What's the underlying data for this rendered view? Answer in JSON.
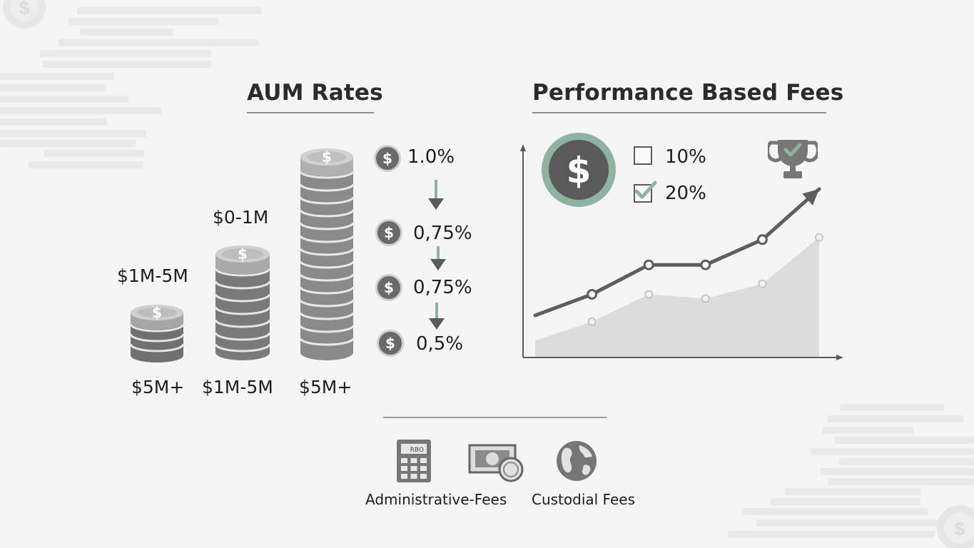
{
  "aum": {
    "title": "AUM Rates",
    "stacks": [
      {
        "top_label": "$1M-5M",
        "bottom_label": "$5M+",
        "symbol": "$"
      },
      {
        "top_label": "$0-1M",
        "bottom_label": "$1M-5M",
        "symbol": "$"
      },
      {
        "bottom_label": "$5M+",
        "symbol": "$"
      }
    ],
    "rates": [
      {
        "symbol": "$",
        "value": "1.0%"
      },
      {
        "symbol": "$",
        "value": "0,75%"
      },
      {
        "symbol": "$",
        "value": "0,75%"
      },
      {
        "symbol": "$",
        "value": "0,5%"
      }
    ],
    "arrow_icon": "arrow-down-icon"
  },
  "performance": {
    "title": "Performance Based Fees",
    "badge_symbol": "$",
    "options": [
      {
        "label": "10%",
        "checked": false
      },
      {
        "label": "20%",
        "checked": true
      }
    ],
    "trophy_icon": "trophy-icon"
  },
  "chart_data": {
    "type": "line",
    "title": "",
    "xlabel": "",
    "ylabel": "",
    "x": [
      1,
      2,
      3,
      4,
      5,
      6
    ],
    "series": [
      {
        "values": [
          2.0,
          3.0,
          4.4,
          4.4,
          5.6,
          8.0
        ],
        "style": "line",
        "color": "#5e5e5e"
      },
      {
        "values": [
          0.8,
          1.7,
          3.0,
          2.8,
          3.5,
          5.7
        ],
        "style": "area",
        "color": "#dcdcdc"
      }
    ],
    "ylim": [
      0,
      10
    ],
    "grid": false
  },
  "footer": {
    "items": [
      {
        "label": "Administrative-Fees",
        "icon": "calculator-icon",
        "display": "RBO"
      },
      {
        "icon": "cash-coin-icon"
      },
      {
        "label": "Custodial Fees",
        "icon": "globe-icon"
      }
    ]
  },
  "colors": {
    "accent_green": "#8fb3a0",
    "coin_dark": "#666666",
    "background": "#f5f5f5"
  }
}
